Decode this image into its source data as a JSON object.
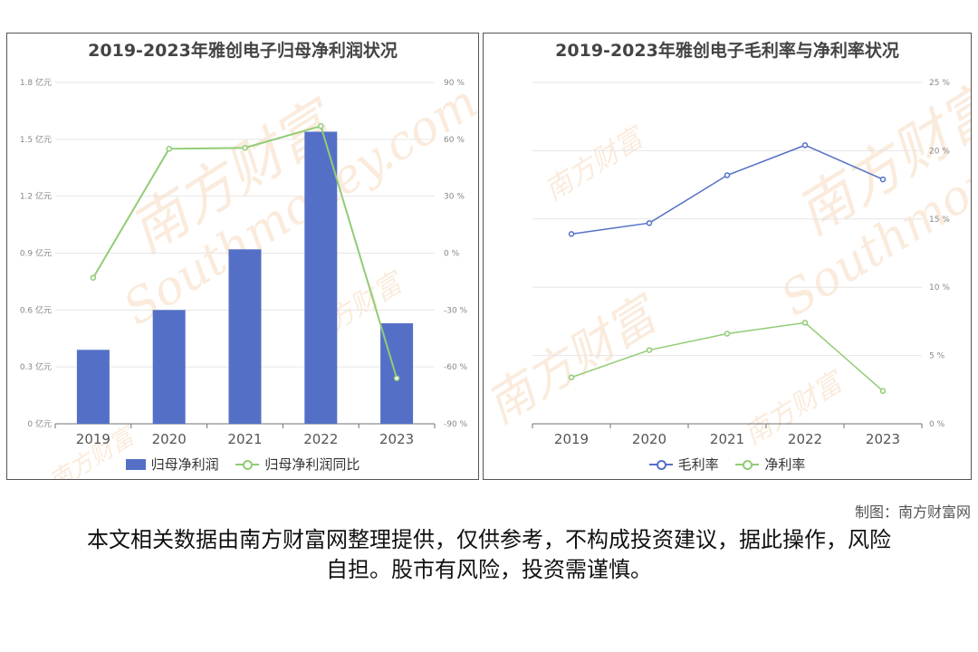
{
  "watermark": {
    "cn": "南方财富",
    "en": "Southmoney.com"
  },
  "credit": "制图：南方财富网",
  "disclaimer": "本文相关数据由南方财富网整理提供，仅供参考，不构成投资建议，据此操作，风险自担。股市有风险，投资需谨慎。",
  "colors": {
    "bar": "#5470c6",
    "gross": "#5470c6",
    "net": "#91cc75",
    "grid": "#e6e6e6",
    "axis": "#6e7079"
  },
  "chart_data": [
    {
      "type": "bar",
      "title": "2019-2023年雅创电子归母净利润状况",
      "categories": [
        "2019",
        "2020",
        "2021",
        "2022",
        "2023"
      ],
      "series": [
        {
          "name": "归母净利润",
          "type": "bar",
          "axis": "left",
          "values": [
            0.39,
            0.6,
            0.92,
            1.54,
            0.53
          ]
        },
        {
          "name": "归母净利润同比",
          "type": "line",
          "axis": "right",
          "values": [
            -13,
            55,
            55.5,
            67,
            -66
          ]
        }
      ],
      "y_left": {
        "min": 0,
        "max": 1.8,
        "ticks": [
          "0 亿元",
          "0.3 亿元",
          "0.6 亿元",
          "0.9 亿元",
          "1.2 亿元",
          "1.5 亿元",
          "1.8 亿元"
        ]
      },
      "y_right": {
        "min": -90,
        "max": 90,
        "ticks": [
          "-90 %",
          "-60 %",
          "-30 %",
          "0 %",
          "30 %",
          "60 %",
          "90 %"
        ]
      },
      "grid": true,
      "legend": "bottom"
    },
    {
      "type": "line",
      "title": "2019-2023年雅创电子毛利率与净利率状况",
      "categories": [
        "2019",
        "2020",
        "2021",
        "2022",
        "2023"
      ],
      "series": [
        {
          "name": "毛利率",
          "values": [
            13.9,
            14.7,
            18.2,
            20.4,
            17.9
          ]
        },
        {
          "name": "净利率",
          "values": [
            3.4,
            5.4,
            6.6,
            7.4,
            2.4
          ]
        }
      ],
      "y_right": {
        "min": 0,
        "max": 25,
        "ticks": [
          "0 %",
          "5 %",
          "10 %",
          "15 %",
          "20 %",
          "25 %"
        ]
      },
      "grid": true,
      "legend": "bottom"
    }
  ]
}
